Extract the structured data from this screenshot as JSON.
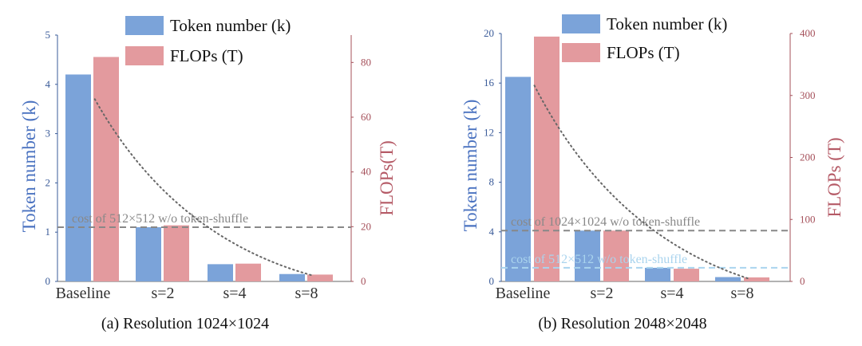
{
  "chart_data": [
    {
      "type": "bar",
      "caption": "(a) Resolution 1024×1024",
      "categories": [
        "Baseline",
        "s=2",
        "s=4",
        "s=8"
      ],
      "series": [
        {
          "name": "Token number (k)",
          "axis": "left",
          "color": "#7ba3d9",
          "values": [
            4.2,
            1.1,
            0.35,
            0.15
          ]
        },
        {
          "name": "FLOPs (T)",
          "axis": "right",
          "color": "#e39a9e",
          "values": [
            82,
            20.5,
            6.5,
            2.5
          ]
        }
      ],
      "ylabel": "Token number (k)",
      "ylabel_right": "FLOPs(T)",
      "ylim": [
        0,
        5
      ],
      "ylim_right": [
        0,
        90
      ],
      "yticks": [
        "0",
        "1",
        "2",
        "3",
        "4",
        "5"
      ],
      "yticks_right": [
        "0",
        "20",
        "40",
        "60",
        "80"
      ],
      "reference_lines": [
        {
          "label": "cost of 512×512 w/o token-shuffle",
          "value": 1.1,
          "color": "#888888"
        }
      ],
      "trend_line": {
        "style": "dotted",
        "points": [
          [
            0.2,
            3.7
          ],
          [
            1.6,
            0.9
          ],
          [
            3.7,
            0.12
          ]
        ]
      },
      "legend_position": "top-center"
    },
    {
      "type": "bar",
      "caption": "(b) Resolution 2048×2048",
      "categories": [
        "Baseline",
        "s=2",
        "s=4",
        "s=8"
      ],
      "series": [
        {
          "name": "Token number (k)",
          "axis": "left",
          "color": "#7ba3d9",
          "values": [
            16.5,
            4.1,
            1.1,
            0.35
          ]
        },
        {
          "name": "FLOPs (T)",
          "axis": "right",
          "color": "#e39a9e",
          "values": [
            395,
            82,
            20.5,
            6.5
          ]
        }
      ],
      "ylabel": "Token number (k)",
      "ylabel_right": "FLOPs (T)",
      "ylim": [
        0,
        20
      ],
      "ylim_right": [
        0,
        400
      ],
      "yticks": [
        "0",
        "4",
        "8",
        "12",
        "16",
        "20"
      ],
      "yticks_right": [
        "0",
        "100",
        "200",
        "300",
        "400"
      ],
      "reference_lines": [
        {
          "label": "cost of 1024×1024 w/o token-shuffle",
          "value": 4.1,
          "color": "#888888"
        },
        {
          "label": "cost of 512×512 w/o token-shuffle",
          "value": 1.1,
          "color": "#aad4ee"
        }
      ],
      "trend_line": {
        "style": "dotted",
        "points": [
          [
            0.2,
            15.8
          ],
          [
            1.6,
            3.8
          ],
          [
            3.7,
            0.2
          ]
        ]
      },
      "legend_position": "top-center"
    }
  ]
}
